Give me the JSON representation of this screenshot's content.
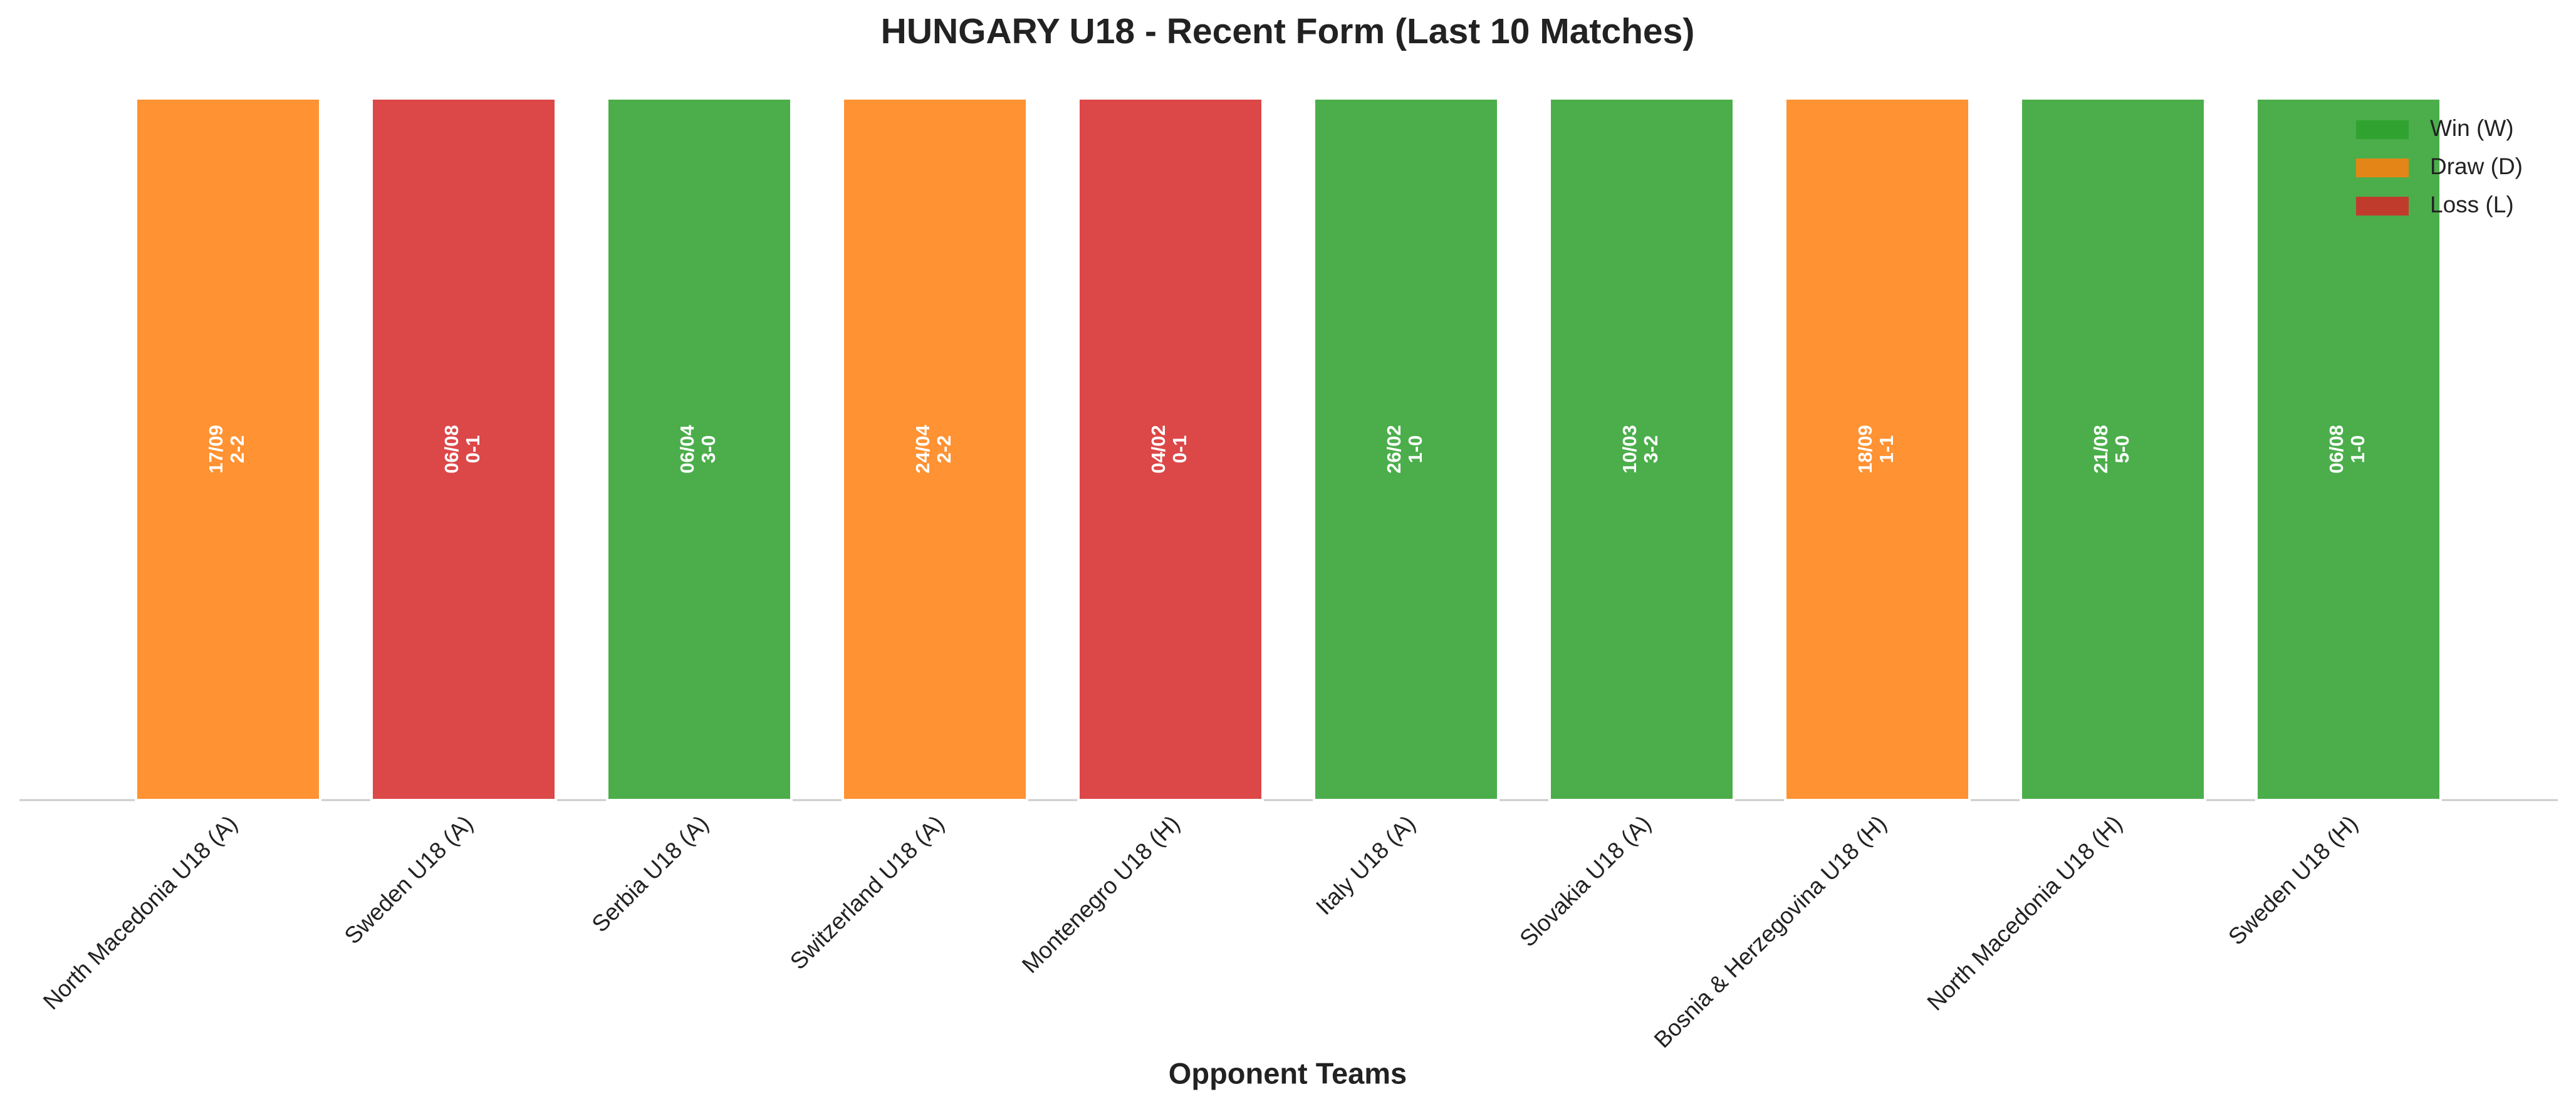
{
  "chart_data": {
    "type": "bar",
    "title": "HUNGARY U18 - Recent Form (Last 10 Matches)",
    "xlabel": "Opponent Teams",
    "categories": [
      "North Macedonia U18 (A)",
      "Sweden U18 (A)",
      "Serbia U18 (A)",
      "Switzerland U18 (A)",
      "Montenegro U18 (H)",
      "Italy U18 (A)",
      "Slovakia U18 (A)",
      "Bosnia & Herzegovina U18 (H)",
      "North Macedonia U18 (H)",
      "Sweden U18 (H)"
    ],
    "values": [
      1,
      1,
      1,
      1,
      1,
      1,
      1,
      1,
      1,
      1
    ],
    "dates": [
      "17/09",
      "06/08",
      "06/04",
      "24/04",
      "04/02",
      "26/02",
      "10/03",
      "18/09",
      "21/08",
      "06/08"
    ],
    "scores": [
      "2-2",
      "0-1",
      "3-0",
      "2-2",
      "0-1",
      "1-0",
      "3-2",
      "1-1",
      "5-0",
      "1-0"
    ],
    "colors": [
      "#ff7f0e",
      "#d62728",
      "#2ca02c",
      "#ff7f0e",
      "#d62728",
      "#2ca02c",
      "#2ca02c",
      "#ff7f0e",
      "#2ca02c",
      "#2ca02c"
    ],
    "ylim": [
      0,
      1
    ],
    "legend": [
      {
        "name": "Win (W)",
        "color": "#2ca02c"
      },
      {
        "name": "Draw (D)",
        "color": "#ff7f0e"
      },
      {
        "name": "Loss (L)",
        "color": "#d62728"
      }
    ]
  }
}
